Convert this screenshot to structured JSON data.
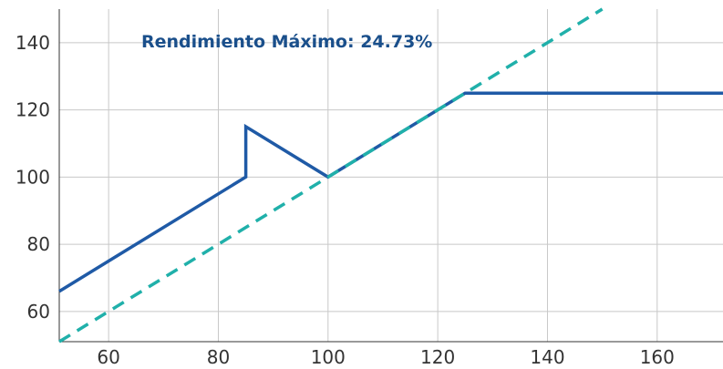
{
  "chart_data": {
    "type": "line",
    "title": "",
    "xlabel": "",
    "ylabel": "",
    "xlim": [
      51,
      172
    ],
    "ylim": [
      51,
      150
    ],
    "xticks": [
      60,
      80,
      100,
      120,
      140,
      160
    ],
    "yticks": [
      60,
      80,
      100,
      120,
      140
    ],
    "xtick_labels": [
      "60",
      "80",
      "100",
      "120",
      "140",
      "160"
    ],
    "ytick_labels": [
      "60",
      "80",
      "100",
      "120",
      "140"
    ],
    "grid": true,
    "annotation": "Rendimiento Máximo: 24.73%",
    "series": [
      {
        "style": "solid",
        "color": "#1f5aa6",
        "x": [
          51,
          85,
          85,
          100,
          125,
          172
        ],
        "y": [
          66,
          100,
          115,
          100,
          125,
          125
        ]
      },
      {
        "style": "dashed",
        "color": "#20b0aa",
        "x": [
          51,
          150
        ],
        "y": [
          51,
          150
        ]
      }
    ]
  }
}
